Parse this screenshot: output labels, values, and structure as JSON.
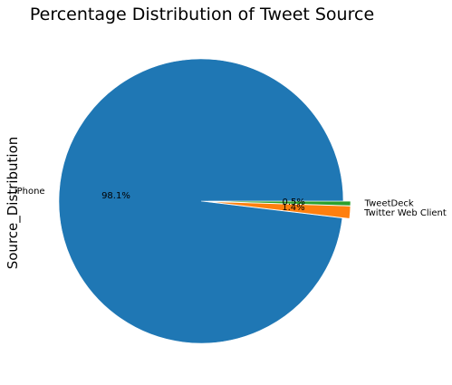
{
  "chart_data": {
    "type": "pie",
    "title": "Percentage Distribution of Tweet Source",
    "ylabel": "Source_Distribution",
    "categories": [
      "iPhone",
      "Twitter Web Client",
      "TweetDeck"
    ],
    "values": [
      98.1,
      1.4,
      0.5
    ],
    "percent_labels": [
      "98.1%",
      "1.4%",
      "0.5%"
    ],
    "colors": [
      "#1f77b4",
      "#ff7f0e",
      "#2ca02c"
    ],
    "exploded": [
      false,
      true,
      true
    ],
    "start_angle_deg": 0,
    "direction": "counterclockwise",
    "legend": "none",
    "grid": false
  }
}
